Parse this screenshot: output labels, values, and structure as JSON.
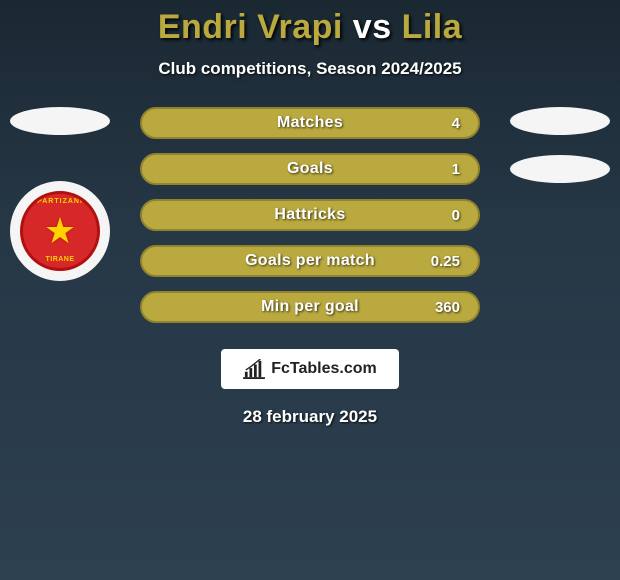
{
  "title": {
    "player1": "Endri Vrapi",
    "vs": "vs",
    "player2": "Lila",
    "player1_color": "#b9a93f",
    "vs_color": "#ffffff",
    "player2_color": "#b9a93f"
  },
  "subtitle": "Club competitions, Season 2024/2025",
  "stats": {
    "bar_fill": "#b9a93f",
    "bar_border": "#8f8330",
    "rows": [
      {
        "label": "Matches",
        "value": "4"
      },
      {
        "label": "Goals",
        "value": "1"
      },
      {
        "label": "Hattricks",
        "value": "0"
      },
      {
        "label": "Goals per match",
        "value": "0.25"
      },
      {
        "label": "Min per goal",
        "value": "360"
      }
    ]
  },
  "badge": {
    "top_text": "PARTIZANI",
    "bottom_text": "TIRANE"
  },
  "brand": "FcTables.com",
  "date": "28 february 2025",
  "background": {
    "from": "#1a2832",
    "to": "#2d4050"
  }
}
